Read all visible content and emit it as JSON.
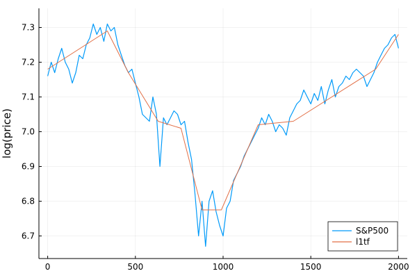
{
  "chart_data": {
    "type": "line",
    "ylabel": "log(price)",
    "xlim": [
      -50,
      2050
    ],
    "ylim": [
      6.635,
      7.355
    ],
    "xticks": [
      0,
      500,
      1000,
      1500,
      2000
    ],
    "xtick_labels": [
      "0",
      "500",
      "1000",
      "1500",
      "2000"
    ],
    "yticks": [
      6.7,
      6.8,
      6.9,
      7.0,
      7.1,
      7.2,
      7.3
    ],
    "ytick_labels": [
      "6.7",
      "6.8",
      "6.9",
      "7.0",
      "7.1",
      "7.2",
      "7.3"
    ],
    "grid": true,
    "legend_position": "bottom-right",
    "series": [
      {
        "name": "S&P500",
        "color": "#009af9",
        "x": [
          0,
          20,
          40,
          60,
          80,
          100,
          120,
          140,
          160,
          180,
          200,
          220,
          240,
          260,
          280,
          300,
          320,
          340,
          360,
          380,
          400,
          420,
          440,
          460,
          480,
          500,
          520,
          540,
          560,
          580,
          600,
          620,
          640,
          660,
          680,
          700,
          720,
          740,
          760,
          780,
          800,
          820,
          840,
          860,
          880,
          900,
          920,
          940,
          960,
          980,
          1000,
          1020,
          1040,
          1060,
          1080,
          1100,
          1120,
          1140,
          1160,
          1180,
          1200,
          1220,
          1240,
          1260,
          1280,
          1300,
          1320,
          1340,
          1360,
          1380,
          1400,
          1420,
          1440,
          1460,
          1480,
          1500,
          1520,
          1540,
          1560,
          1580,
          1600,
          1620,
          1640,
          1660,
          1680,
          1700,
          1720,
          1740,
          1760,
          1780,
          1800,
          1820,
          1840,
          1860,
          1880,
          1900,
          1920,
          1940,
          1960,
          1980,
          2000
        ],
        "values": [
          7.16,
          7.2,
          7.17,
          7.21,
          7.24,
          7.2,
          7.18,
          7.14,
          7.17,
          7.22,
          7.21,
          7.25,
          7.27,
          7.31,
          7.28,
          7.3,
          7.26,
          7.31,
          7.29,
          7.3,
          7.25,
          7.22,
          7.19,
          7.17,
          7.18,
          7.14,
          7.1,
          7.05,
          7.04,
          7.03,
          7.1,
          7.05,
          6.9,
          7.04,
          7.02,
          7.04,
          7.06,
          7.05,
          7.02,
          7.03,
          6.97,
          6.92,
          6.82,
          6.7,
          6.8,
          6.67,
          6.8,
          6.83,
          6.77,
          6.73,
          6.7,
          6.78,
          6.8,
          6.86,
          6.88,
          6.9,
          6.93,
          6.95,
          6.97,
          6.99,
          7.01,
          7.04,
          7.02,
          7.05,
          7.03,
          7.0,
          7.02,
          7.01,
          6.99,
          7.04,
          7.06,
          7.08,
          7.09,
          7.12,
          7.1,
          7.08,
          7.11,
          7.09,
          7.13,
          7.08,
          7.12,
          7.15,
          7.1,
          7.13,
          7.14,
          7.16,
          7.15,
          7.17,
          7.18,
          7.17,
          7.16,
          7.13,
          7.15,
          7.17,
          7.2,
          7.22,
          7.24,
          7.25,
          7.27,
          7.28,
          7.24
        ]
      },
      {
        "name": "l1tf",
        "color": "#e26f46",
        "x": [
          0,
          340,
          460,
          630,
          760,
          880,
          990,
          1200,
          1400,
          1870,
          2000
        ],
        "values": [
          7.18,
          7.29,
          7.17,
          7.03,
          7.01,
          6.775,
          6.775,
          7.02,
          7.03,
          7.18,
          7.28
        ]
      }
    ]
  }
}
